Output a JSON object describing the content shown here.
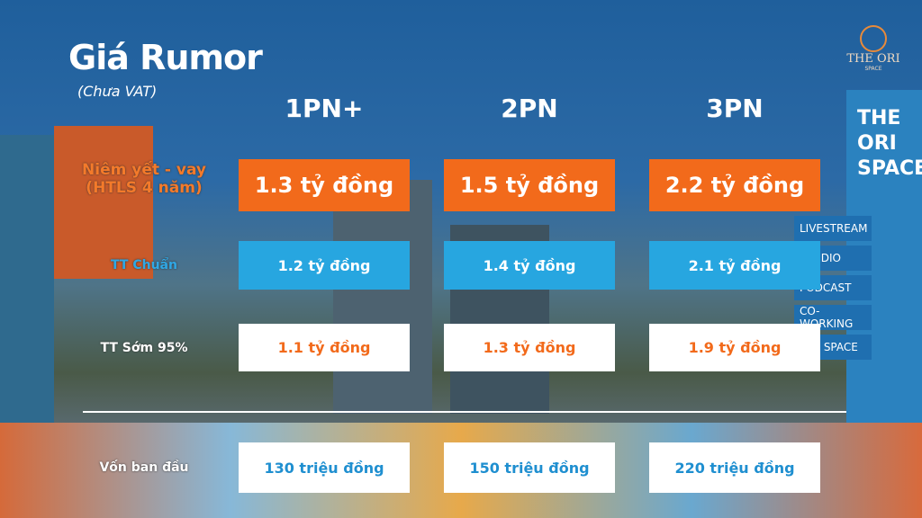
{
  "header": {
    "title": "Giá Rumor",
    "subtitle": "(Chưa VAT)"
  },
  "logo": {
    "name": "THE ORI",
    "tagline": "SPACE"
  },
  "signs": {
    "tower": [
      "THE",
      "ORI",
      "SPACE"
    ],
    "boards": [
      "LIVESTREAM",
      "STUDIO",
      "PODCAST",
      "CO-WORKING",
      "ART SPACE"
    ]
  },
  "table": {
    "columns": [
      "1PN+",
      "2PN",
      "3PN"
    ],
    "rows": [
      {
        "label": [
          "Niêm yết - vay",
          "(HTLS 4 năm)"
        ],
        "cells": [
          "1.3 tỷ đồng",
          "1.5 tỷ đồng",
          "2.2 tỷ đồng"
        ]
      },
      {
        "label": [
          "TT Chuẩn"
        ],
        "cells": [
          "1.2 tỷ đồng",
          "1.4 tỷ đồng",
          "2.1 tỷ đồng"
        ]
      },
      {
        "label": [
          "TT Sớm 95%"
        ],
        "cells": [
          "1.1 tỷ đồng",
          "1.3 tỷ đồng",
          "1.9 tỷ đồng"
        ]
      },
      {
        "label": [
          "Vốn ban đầu"
        ],
        "cells": [
          "130 triệu đồng",
          "150 triệu đồng",
          "220 triệu đồng"
        ]
      }
    ]
  }
}
